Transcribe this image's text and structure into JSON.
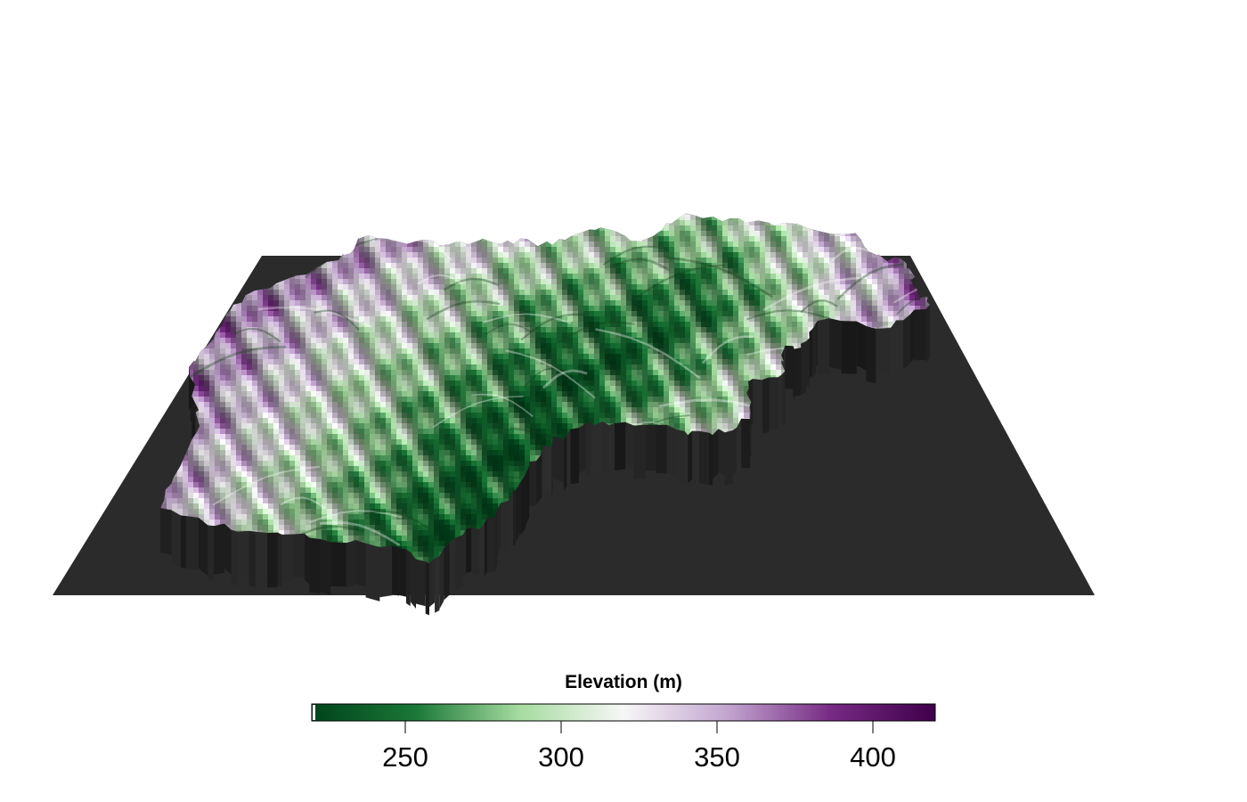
{
  "chart_data": {
    "type": "heatmap",
    "title": "",
    "legend": {
      "title": "Elevation (m)",
      "min": 220,
      "max": 420,
      "ticks": [
        250,
        300,
        350,
        400
      ],
      "tick_labels": [
        "250",
        "300",
        "350",
        "400"
      ],
      "colormap": [
        "#00441b",
        "#1b7837",
        "#a6dba0",
        "#f7f7f7",
        "#c2a5cf",
        "#762a83",
        "#40004b"
      ]
    },
    "surface": {
      "kind": "3d-terrain",
      "base_color": "#2b2b2b",
      "wall_color": "#1e1e1e"
    }
  }
}
